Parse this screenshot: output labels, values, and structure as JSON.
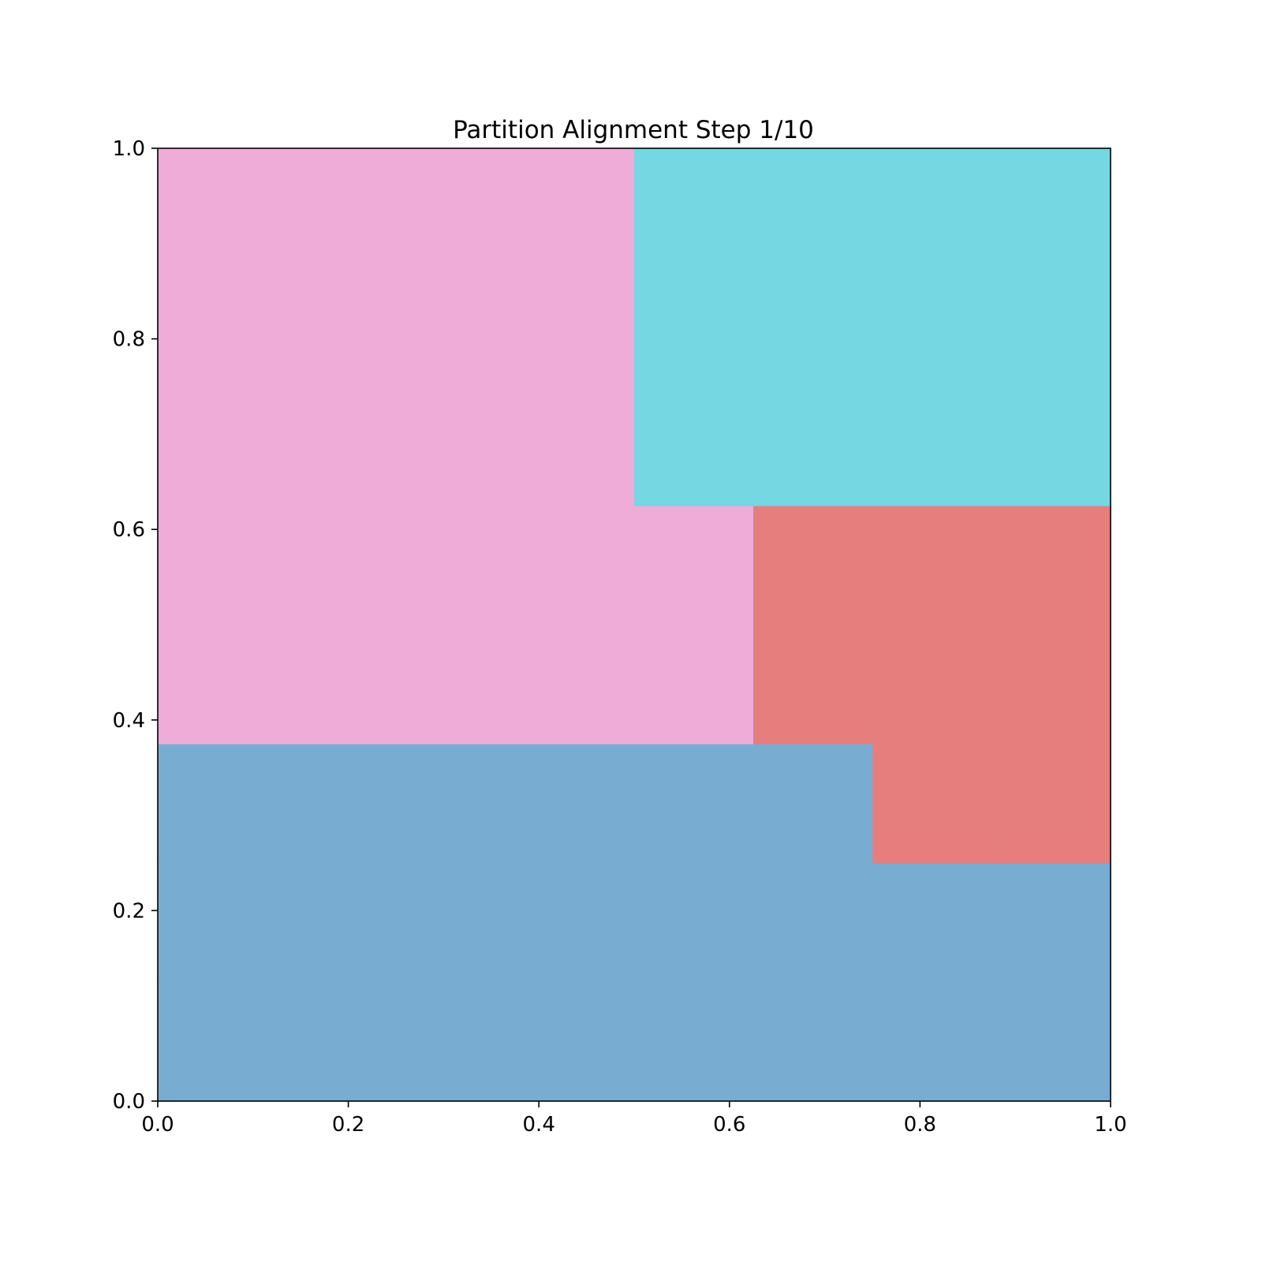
{
  "chart_data": {
    "type": "heatmap",
    "title": "Partition Alignment Step 1/10",
    "xlabel": "",
    "ylabel": "",
    "xlim": [
      0.0,
      1.0
    ],
    "ylim": [
      0.0,
      1.0
    ],
    "xticks": [
      "0.0",
      "0.2",
      "0.4",
      "0.6",
      "0.8",
      "1.0"
    ],
    "yticks": [
      "0.0",
      "0.2",
      "0.4",
      "0.6",
      "0.8",
      "1.0"
    ],
    "grid": false,
    "cell_size": 0.125,
    "regions": [
      {
        "color": "#79acd1",
        "cells": [
          [
            0.0,
            0.0,
            1.0,
            0.25
          ],
          [
            0.0,
            0.25,
            0.75,
            0.375
          ]
        ]
      },
      {
        "color": "#efacd9",
        "cells": [
          [
            0.0,
            0.375,
            0.625,
            0.625
          ],
          [
            0.0,
            0.625,
            0.5,
            1.0
          ]
        ]
      },
      {
        "color": "#e67e7e",
        "cells": [
          [
            0.625,
            0.375,
            1.0,
            0.625
          ],
          [
            0.75,
            0.25,
            1.0,
            0.375
          ]
        ]
      },
      {
        "color": "#74d7e2",
        "cells": [
          [
            0.5,
            0.625,
            1.0,
            1.0
          ]
        ]
      }
    ]
  }
}
